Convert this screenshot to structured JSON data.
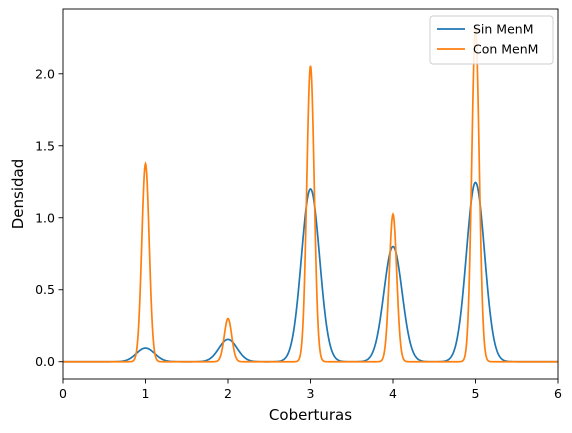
{
  "chart_data": {
    "type": "line",
    "title": "",
    "xlabel": "Coberturas",
    "ylabel": "Densidad",
    "xlim": [
      0,
      6
    ],
    "ylim": [
      -0.12,
      2.45
    ],
    "xticks": [
      0,
      1,
      2,
      3,
      4,
      5,
      6
    ],
    "yticks": [
      0.0,
      0.5,
      1.0,
      1.5,
      2.0
    ],
    "xtick_labels": [
      "0",
      "1",
      "2",
      "3",
      "4",
      "5",
      "6"
    ],
    "ytick_labels": [
      "0.0",
      "0.5",
      "1.0",
      "1.5",
      "2.0"
    ],
    "grid": false,
    "legend_position": "top-right",
    "series": [
      {
        "name": "Sin MenM",
        "color": "#1f77b4",
        "peaks": [
          {
            "x": 1,
            "y": 0.095,
            "width": 0.11
          },
          {
            "x": 2,
            "y": 0.155,
            "width": 0.11
          },
          {
            "x": 3,
            "y": 1.2,
            "width": 0.11
          },
          {
            "x": 4,
            "y": 0.8,
            "width": 0.11
          },
          {
            "x": 5,
            "y": 1.245,
            "width": 0.11
          }
        ]
      },
      {
        "name": "Con MenM",
        "color": "#ff7f0e",
        "peaks": [
          {
            "x": 1,
            "y": 1.375,
            "width": 0.045
          },
          {
            "x": 2,
            "y": 0.3,
            "width": 0.045
          },
          {
            "x": 3,
            "y": 2.055,
            "width": 0.045
          },
          {
            "x": 4,
            "y": 1.025,
            "width": 0.045
          },
          {
            "x": 5,
            "y": 2.32,
            "width": 0.045
          }
        ]
      }
    ]
  }
}
